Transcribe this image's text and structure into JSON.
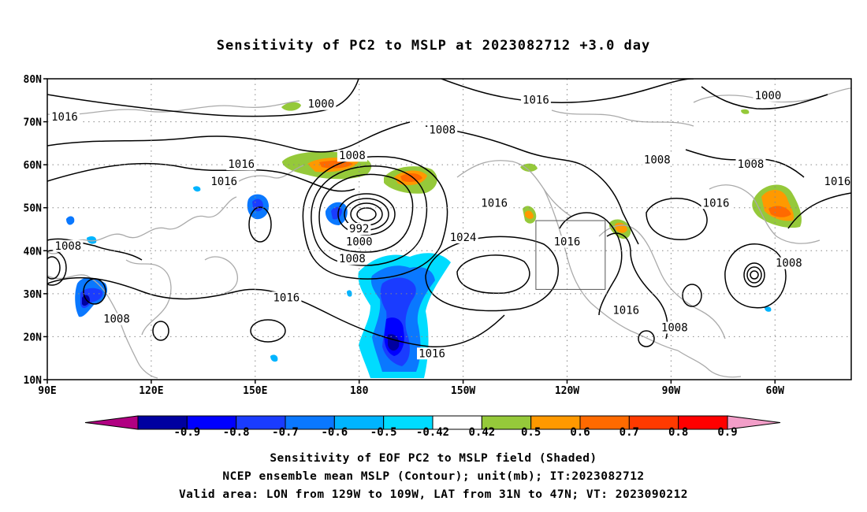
{
  "title": "Sensitivity of PC2 to MSLP at 2023082712 +3.0 day",
  "map": {
    "lat_labels": [
      "80N",
      "70N",
      "60N",
      "50N",
      "40N",
      "30N",
      "20N",
      "10N"
    ],
    "lon_labels": [
      "90E",
      "120E",
      "150E",
      "180",
      "150W",
      "120W",
      "90W",
      "60W"
    ],
    "domain": {
      "lon_min": 90,
      "lon_max": 322,
      "lat_min": 10,
      "lat_max": 80
    },
    "valid_box": {
      "lon_min": 231,
      "lon_max": 251,
      "lat_min": 31,
      "lat_max": 47
    },
    "contour_labels": [
      {
        "text": "1000",
        "lon": 169,
        "lat": 74,
        "id": "contour-label-1000-pacific"
      },
      {
        "text": "1008",
        "lon": 178,
        "lat": 62,
        "id": "contour-label-1008-bering"
      },
      {
        "text": "1016",
        "lon": 231,
        "lat": 75,
        "id": "contour-label-1016-arctic"
      },
      {
        "text": "1008",
        "lon": 204,
        "lat": 68,
        "id": "contour-label-1008-alaska"
      },
      {
        "text": "1000",
        "lon": 298,
        "lat": 76,
        "id": "contour-label-1000-greenland"
      },
      {
        "text": "1008",
        "lon": 266,
        "lat": 61,
        "id": "contour-label-1008-canada"
      },
      {
        "text": "1008",
        "lon": 293,
        "lat": 60,
        "id": "contour-label-1008-labrador"
      },
      {
        "text": "1016",
        "lon": 146,
        "lat": 60,
        "id": "contour-label-1016-siberia"
      },
      {
        "text": "1016",
        "lon": 141,
        "lat": 56,
        "id": "contour-label-1016-kamchatka"
      },
      {
        "text": "1016",
        "lon": 219,
        "lat": 51,
        "id": "contour-label-1016-gulf"
      },
      {
        "text": "1016",
        "lon": 283,
        "lat": 51,
        "id": "contour-label-1016-great-lakes"
      },
      {
        "text": "992",
        "lon": 180,
        "lat": 45,
        "id": "contour-label-992-low"
      },
      {
        "text": "1000",
        "lon": 180,
        "lat": 42,
        "id": "contour-label-1000-low"
      },
      {
        "text": "1008",
        "lon": 178,
        "lat": 38,
        "id": "contour-label-1008-low"
      },
      {
        "text": "1024",
        "lon": 210,
        "lat": 43,
        "id": "contour-label-1024-high"
      },
      {
        "text": "1016",
        "lon": 240,
        "lat": 42,
        "id": "contour-label-1016-box"
      },
      {
        "text": "1008",
        "lon": 96,
        "lat": 41,
        "id": "contour-label-1008-asia"
      },
      {
        "text": "1016",
        "lon": 159,
        "lat": 29,
        "id": "contour-label-1016-subtropics"
      },
      {
        "text": "1008",
        "lon": 110,
        "lat": 24,
        "id": "contour-label-1008-scs"
      },
      {
        "text": "1016",
        "lon": 201,
        "lat": 16,
        "id": "contour-label-1016-tropics"
      },
      {
        "text": "1016",
        "lon": 257,
        "lat": 26,
        "id": "contour-label-1016-mexico"
      },
      {
        "text": "1008",
        "lon": 271,
        "lat": 22,
        "id": "contour-label-1008-gulf-mexico"
      },
      {
        "text": "1008",
        "lon": 304,
        "lat": 37,
        "id": "contour-label-1008-atlantic"
      },
      {
        "text": "1016",
        "lon": 318,
        "lat": 56,
        "id": "contour-label-1016-edge"
      },
      {
        "text": "1016",
        "lon": 95,
        "lat": 71,
        "id": "contour-label-1016-west-edge"
      }
    ]
  },
  "colorbar": {
    "labels": [
      "-0.9",
      "-0.8",
      "-0.7",
      "-0.6",
      "-0.5",
      "-0.42",
      "0.42",
      "0.5",
      "0.6",
      "0.7",
      "0.8",
      "0.9"
    ],
    "colors": [
      "#b10082",
      "#0000a0",
      "#0000ff",
      "#1a3cff",
      "#0a78ff",
      "#00b4ff",
      "#00dcff",
      "#ffffff",
      "#95c93a",
      "#ff9900",
      "#ff6a00",
      "#ff3a00",
      "#ff0000",
      "#f29ec8"
    ]
  },
  "captions": {
    "line1": "Sensitivity of EOF PC2 to MSLP field (Shaded)",
    "line2": "NCEP ensemble mean MSLP (Contour); unit(mb); IT:2023082712",
    "line3": "Valid area: LON from 129W to 109W, LAT from 31N to 47N; VT: 2023090212"
  }
}
